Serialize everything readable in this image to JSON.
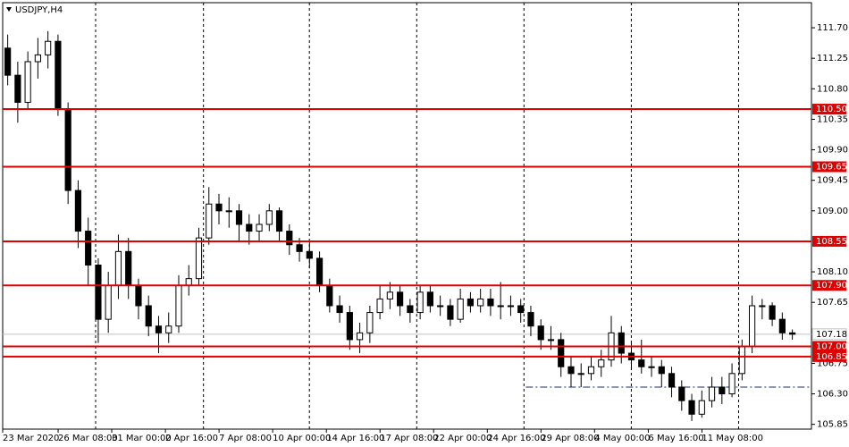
{
  "chart_data": {
    "type": "candlestick",
    "title": "USDJPY,H4",
    "ylim": [
      105.78,
      112.07
    ],
    "yticks": [
      {
        "value": 111.7,
        "label": "111.70"
      },
      111.25,
      {
        "value": 110.8,
        "label": "110.80"
      },
      110.35,
      {
        "value": 109.9,
        "label": "109.90"
      },
      109.45,
      {
        "value": 109,
        "label": "109.00"
      },
      {
        "value": 108.1,
        "label": "108.10"
      },
      107.65,
      106.75,
      {
        "value": 106.3,
        "label": "106.30"
      },
      105.85
    ],
    "xlim": [
      0,
      80.4
    ],
    "xticks": [
      {
        "value": 0,
        "label": "23 Mar 2020"
      },
      {
        "value": 5.51,
        "label": "26 Mar 08:00"
      },
      {
        "value": 10.84,
        "label": "31 Mar 00:00"
      },
      {
        "value": 16.18,
        "label": "2 Apr 16:00"
      },
      {
        "value": 21.51,
        "label": "7 Apr 08:00"
      },
      {
        "value": 26.84,
        "label": "10 Apr 00:00"
      },
      {
        "value": 32.18,
        "label": "14 Apr 16:00"
      },
      {
        "value": 37.51,
        "label": "17 Apr 08:00"
      },
      {
        "value": 42.84,
        "label": "22 Apr 00:00"
      },
      {
        "value": 48.18,
        "label": "24 Apr 16:00"
      },
      {
        "value": 53.51,
        "label": "29 Apr 08:00"
      },
      {
        "value": 58.84,
        "label": "4 May 00:00"
      },
      {
        "value": 64.18,
        "label": "6 May 16:00"
      },
      {
        "value": 69.51,
        "label": "11 May 08:00"
      }
    ],
    "vgrid": [
      9.24,
      19.96,
      30.49,
      41.16,
      51.82,
      62.49,
      73.16
    ],
    "levels": [
      {
        "value": 110.5,
        "label": "110.50"
      },
      {
        "value": 109.65,
        "label": "109.65"
      },
      {
        "value": 108.55,
        "label": "108.55"
      },
      {
        "value": 107.9,
        "label": "107.90"
      },
      {
        "value": 107,
        "label": "107.00"
      },
      {
        "value": 106.85,
        "label": "106.85"
      }
    ],
    "level_color": "#e00000",
    "current_price": 107.18,
    "dashdot_line": {
      "value": 106.4,
      "from": 52
    },
    "ohlc": [
      [
        111.4,
        111.6,
        110.85,
        111.0
      ],
      [
        111.0,
        111.2,
        110.3,
        110.6
      ],
      [
        110.6,
        111.35,
        110.5,
        111.2
      ],
      [
        111.2,
        111.55,
        110.95,
        111.3
      ],
      [
        111.3,
        111.65,
        111.1,
        111.5
      ],
      [
        111.5,
        111.6,
        110.4,
        110.5
      ],
      [
        110.5,
        110.6,
        109.1,
        109.3
      ],
      [
        109.3,
        109.45,
        108.45,
        108.7
      ],
      [
        108.7,
        108.9,
        107.9,
        108.2
      ],
      [
        108.2,
        108.3,
        107.05,
        107.4
      ],
      [
        107.4,
        108.1,
        107.2,
        107.9
      ],
      [
        107.9,
        108.65,
        107.7,
        108.4
      ],
      [
        108.4,
        108.6,
        107.7,
        107.9
      ],
      [
        107.9,
        108.0,
        107.4,
        107.6
      ],
      [
        107.6,
        107.75,
        107.15,
        107.3
      ],
      [
        107.3,
        107.45,
        106.9,
        107.2
      ],
      [
        107.2,
        107.5,
        107.05,
        107.3
      ],
      [
        107.3,
        108.05,
        107.2,
        107.9
      ],
      [
        107.9,
        108.2,
        107.75,
        108.0
      ],
      [
        108.0,
        108.75,
        107.9,
        108.6
      ],
      [
        108.6,
        109.35,
        108.5,
        109.1
      ],
      [
        109.1,
        109.25,
        108.8,
        109.0
      ],
      [
        109.0,
        109.2,
        108.75,
        109.0
      ],
      [
        109.0,
        109.1,
        108.55,
        108.8
      ],
      [
        108.8,
        108.95,
        108.5,
        108.7
      ],
      [
        108.7,
        108.95,
        108.55,
        108.8
      ],
      [
        108.8,
        109.1,
        108.7,
        109.0
      ],
      [
        109.0,
        109.05,
        108.55,
        108.7
      ],
      [
        108.7,
        108.8,
        108.35,
        108.5
      ],
      [
        108.5,
        108.6,
        108.25,
        108.4
      ],
      [
        108.4,
        108.55,
        108.15,
        108.3
      ],
      [
        108.3,
        108.4,
        107.8,
        107.9
      ],
      [
        107.9,
        108.0,
        107.5,
        107.6
      ],
      [
        107.6,
        107.75,
        107.35,
        107.5
      ],
      [
        107.5,
        107.6,
        106.95,
        107.1
      ],
      [
        107.1,
        107.35,
        106.9,
        107.2
      ],
      [
        107.2,
        107.6,
        107.05,
        107.5
      ],
      [
        107.5,
        107.9,
        107.4,
        107.7
      ],
      [
        107.7,
        107.95,
        107.55,
        107.8
      ],
      [
        107.8,
        107.9,
        107.45,
        107.6
      ],
      [
        107.6,
        107.7,
        107.35,
        107.5
      ],
      [
        107.5,
        107.9,
        107.4,
        107.8
      ],
      [
        107.8,
        107.9,
        107.5,
        107.6
      ],
      [
        107.6,
        107.75,
        107.45,
        107.6
      ],
      [
        107.6,
        107.7,
        107.3,
        107.4
      ],
      [
        107.4,
        107.85,
        107.35,
        107.7
      ],
      [
        107.7,
        107.8,
        107.5,
        107.6
      ],
      [
        107.6,
        107.85,
        107.5,
        107.7
      ],
      [
        107.7,
        107.85,
        107.45,
        107.6
      ],
      [
        107.6,
        107.95,
        107.4,
        107.6
      ],
      [
        107.6,
        107.75,
        107.45,
        107.6
      ],
      [
        107.6,
        107.7,
        107.35,
        107.5
      ],
      [
        107.5,
        107.6,
        107.15,
        107.3
      ],
      [
        107.3,
        107.4,
        106.95,
        107.1
      ],
      [
        107.1,
        107.3,
        106.95,
        107.1
      ],
      [
        107.1,
        107.2,
        106.55,
        106.7
      ],
      [
        106.7,
        106.85,
        106.4,
        106.6
      ],
      [
        106.6,
        106.75,
        106.4,
        106.6
      ],
      [
        106.6,
        106.85,
        106.5,
        106.7
      ],
      [
        106.7,
        106.95,
        106.55,
        106.8
      ],
      [
        106.8,
        107.45,
        106.7,
        107.2
      ],
      [
        107.2,
        107.3,
        106.75,
        106.9
      ],
      [
        106.9,
        107.05,
        106.65,
        106.8
      ],
      [
        106.8,
        107.1,
        106.6,
        106.7
      ],
      [
        106.7,
        106.85,
        106.55,
        106.7
      ],
      [
        106.7,
        106.8,
        106.4,
        106.6
      ],
      [
        106.6,
        106.7,
        106.25,
        106.4
      ],
      [
        106.4,
        106.5,
        106.05,
        106.2
      ],
      [
        106.2,
        106.3,
        105.9,
        106.0
      ],
      [
        106.0,
        106.35,
        105.95,
        106.2
      ],
      [
        106.2,
        106.55,
        106.1,
        106.4
      ],
      [
        106.4,
        106.55,
        106.15,
        106.3
      ],
      [
        106.3,
        106.75,
        106.25,
        106.6
      ],
      [
        106.6,
        107.1,
        106.5,
        107.0
      ],
      [
        107.0,
        107.75,
        106.9,
        107.6
      ],
      [
        107.6,
        107.7,
        107.4,
        107.6
      ],
      [
        107.6,
        107.65,
        107.3,
        107.4
      ],
      [
        107.4,
        107.5,
        107.1,
        107.2
      ],
      [
        107.2,
        107.25,
        107.1,
        107.18
      ]
    ]
  }
}
